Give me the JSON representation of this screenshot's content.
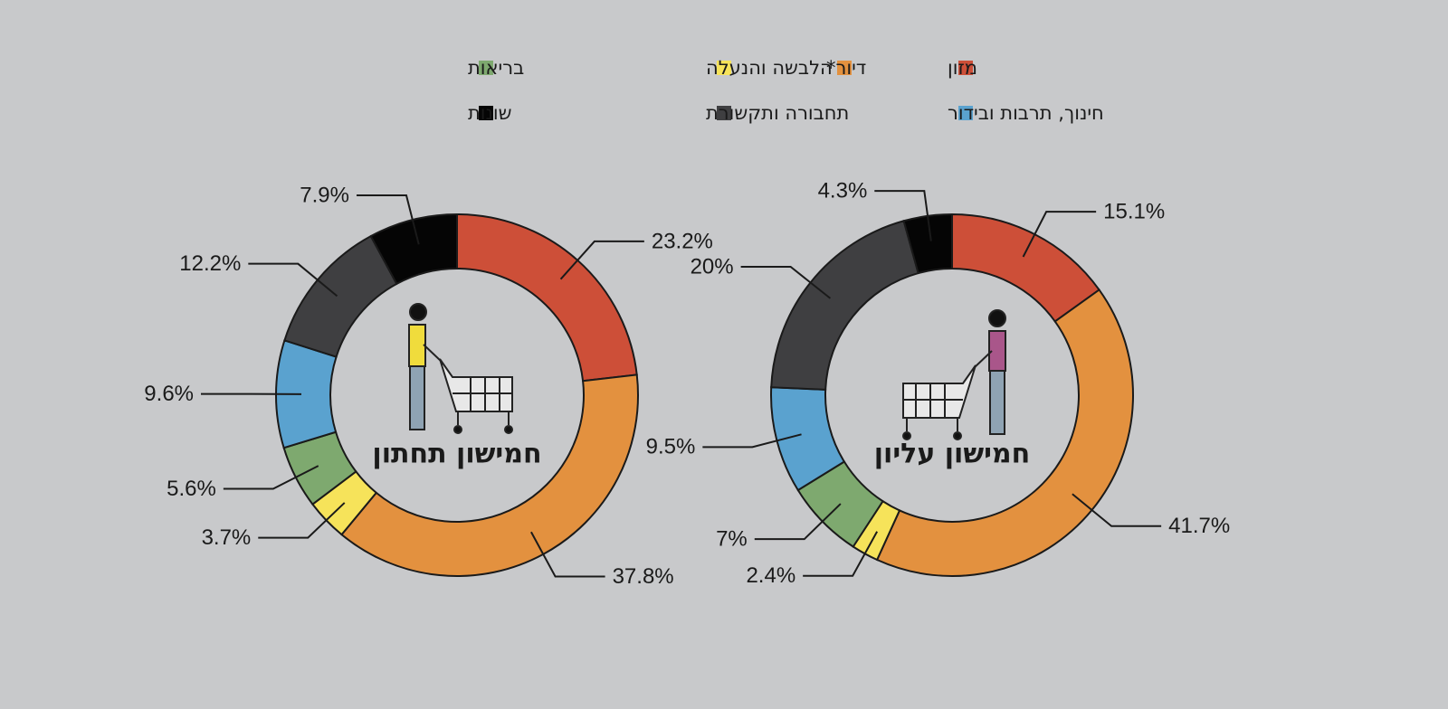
{
  "chart_data": {
    "type": "pie",
    "categories": [
      "מזון",
      "דיור*",
      "הלבשה והנעלה",
      "בריאות",
      "חינוך, תרבות ובידור",
      "תחבורה ותקשורת",
      "שונות"
    ],
    "colors": [
      "#cd4f38",
      "#e3913f",
      "#f6e35a",
      "#7ea96f",
      "#5aa2cf",
      "#3f3f41",
      "#050505"
    ],
    "series": [
      {
        "name": "חמישון תחתון",
        "values": [
          23.2,
          37.8,
          3.7,
          5.6,
          9.6,
          12.2,
          7.9
        ],
        "value_labels": [
          "23.2%",
          "37.8%",
          "3.7%",
          "5.6%",
          "9.6%",
          "12.2%",
          "7.9%"
        ]
      },
      {
        "name": "חמישון עליון",
        "values": [
          15.1,
          41.7,
          2.4,
          7,
          9.5,
          20,
          4.3
        ],
        "value_labels": [
          "15.1%",
          "41.7%",
          "2.4%",
          "7%",
          "9.5%",
          "20%",
          "4.3%"
        ]
      }
    ]
  }
}
